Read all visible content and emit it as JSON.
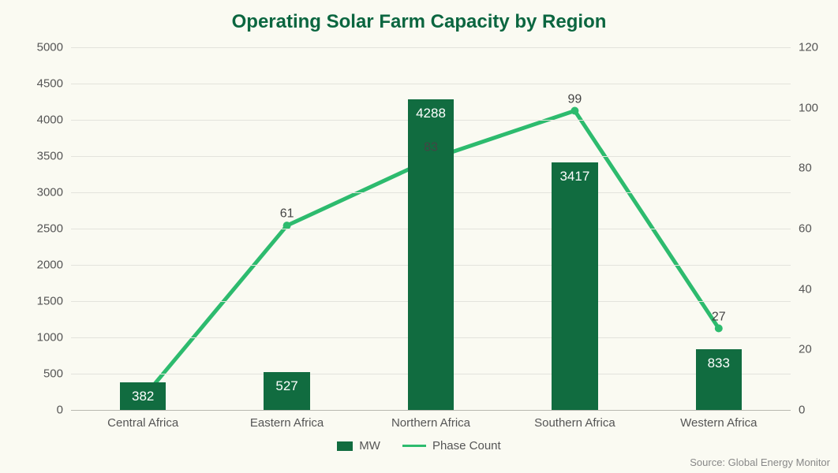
{
  "chart": {
    "type": "bar+line",
    "title": "Operating Solar Farm Capacity by Region",
    "title_color": "#0b6640",
    "title_fontsize": 24,
    "background_color": "#fafaf2",
    "grid_color": "#e3e3dc",
    "axis_text_color": "#555555",
    "axis_fontsize": 15,
    "categories": [
      "Central Africa",
      "Eastern Africa",
      "Northern Africa",
      "Southern Africa",
      "Western Africa"
    ],
    "bars": {
      "label": "MW",
      "values": [
        382,
        527,
        4288,
        3417,
        833
      ],
      "color": "#116c40",
      "value_labels": [
        "382",
        "527",
        "4288",
        "3417",
        "833"
      ],
      "value_label_color": "#ffffff",
      "value_label_fontsize": 17,
      "bar_width_frac": 0.32
    },
    "line": {
      "label": "Phase Count",
      "values": [
        4,
        61,
        83,
        99,
        27
      ],
      "point_labels": [
        "",
        "61",
        "83",
        "99",
        "27"
      ],
      "color": "#2dbb6e",
      "stroke_width": 5,
      "marker_radius": 5
    },
    "y_left": {
      "min": 0,
      "max": 5000,
      "step": 500
    },
    "y_right": {
      "min": 0,
      "max": 120,
      "step": 20
    },
    "legend": {
      "items": [
        {
          "kind": "bar",
          "label": "MW",
          "color": "#116c40"
        },
        {
          "kind": "line",
          "label": "Phase Count",
          "color": "#2dbb6e"
        }
      ]
    },
    "source": "Source: Global Energy Monitor"
  }
}
